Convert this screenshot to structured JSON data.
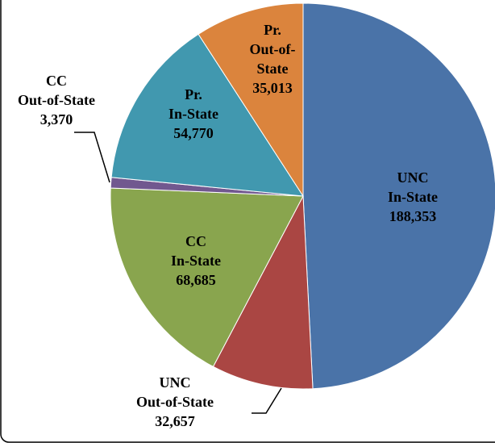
{
  "chart_data": {
    "type": "pie",
    "categories": [
      [
        "UNC",
        "In-State"
      ],
      [
        "UNC",
        "Out-of-State"
      ],
      [
        "CC",
        "In-State"
      ],
      [
        "CC",
        "Out-of-State"
      ],
      [
        "Pr.",
        "In-State"
      ],
      [
        "Pr.",
        "Out-of-",
        "State"
      ]
    ],
    "values": [
      188353,
      32657,
      68685,
      3370,
      54770,
      35013
    ],
    "value_labels": [
      "188,353",
      "32,657",
      "68,685",
      "3,370",
      "54,770",
      "35,013"
    ],
    "colors": [
      "#4a73a8",
      "#aa4643",
      "#89a54e",
      "#71588f",
      "#4198af",
      "#db843d"
    ]
  }
}
